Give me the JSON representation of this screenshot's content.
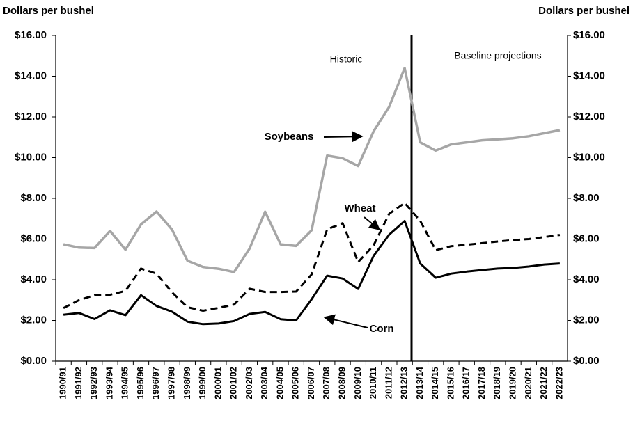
{
  "chart_data": {
    "type": "line",
    "ylabel": "Dollars per bushel",
    "y2label": "Dollars per bushel",
    "categories": [
      "1990/91",
      "1991/92",
      "1992/93",
      "1993/94",
      "1994/95",
      "1995/96",
      "1996/97",
      "1997/98",
      "1998/99",
      "1999/00",
      "2000/01",
      "2001/02",
      "2002/03",
      "2003/04",
      "2004/05",
      "2005/06",
      "2006/07",
      "2007/08",
      "2008/09",
      "2009/10",
      "2010/11",
      "2011/12",
      "2012/13",
      "2013/14",
      "2014/15",
      "2015/16",
      "2016/17",
      "2017/18",
      "2018/19",
      "2019/20",
      "2020/21",
      "2021/22",
      "2022/23"
    ],
    "series": [
      {
        "name": "Soybeans",
        "color": "#a6a6a6",
        "dashed": false,
        "values": [
          5.74,
          5.58,
          5.56,
          6.4,
          5.48,
          6.72,
          7.35,
          6.47,
          4.93,
          4.63,
          4.54,
          4.38,
          5.53,
          7.34,
          5.74,
          5.66,
          6.43,
          10.1,
          9.97,
          9.59,
          11.3,
          12.5,
          14.4,
          10.75,
          10.35,
          10.65,
          10.75,
          10.85,
          10.9,
          10.95,
          11.05,
          11.2,
          11.35
        ]
      },
      {
        "name": "Wheat",
        "color": "#000000",
        "dashed": true,
        "values": [
          2.61,
          3.0,
          3.24,
          3.26,
          3.45,
          4.55,
          4.3,
          3.38,
          2.65,
          2.48,
          2.62,
          2.78,
          3.56,
          3.4,
          3.4,
          3.42,
          4.26,
          6.48,
          6.78,
          4.87,
          5.7,
          7.24,
          7.77,
          6.9,
          5.45,
          5.65,
          5.72,
          5.8,
          5.88,
          5.95,
          6.0,
          6.1,
          6.2
        ]
      },
      {
        "name": "Corn",
        "color": "#000000",
        "dashed": false,
        "values": [
          2.28,
          2.37,
          2.07,
          2.5,
          2.26,
          3.24,
          2.71,
          2.43,
          1.94,
          1.82,
          1.85,
          1.97,
          2.32,
          2.42,
          2.06,
          2.0,
          3.04,
          4.2,
          4.06,
          3.55,
          5.18,
          6.22,
          6.89,
          4.8,
          4.1,
          4.3,
          4.4,
          4.48,
          4.55,
          4.58,
          4.65,
          4.75,
          4.8
        ]
      }
    ],
    "ylim": [
      0,
      16
    ],
    "yticks": [
      {
        "value": 0,
        "label": "$0.00"
      },
      {
        "value": 2,
        "label": "$2.00"
      },
      {
        "value": 4,
        "label": "$4.00"
      },
      {
        "value": 6,
        "label": "$6.00"
      },
      {
        "value": 8,
        "label": "$8.00"
      },
      {
        "value": 10,
        "label": "$10.00"
      },
      {
        "value": 12,
        "label": "$12.00"
      },
      {
        "value": 14,
        "label": "$14.00"
      },
      {
        "value": 16,
        "label": "$16.00"
      }
    ],
    "y2lim": [
      0,
      16
    ],
    "y2ticks": [
      {
        "value": 0,
        "label": "$0.00"
      },
      {
        "value": 2,
        "label": "$2.00"
      },
      {
        "value": 4,
        "label": "$4.00"
      },
      {
        "value": 6,
        "label": "$6.00"
      },
      {
        "value": 8,
        "label": "$8.00"
      },
      {
        "value": 10,
        "label": "$10.00"
      },
      {
        "value": 12,
        "label": "$12.00"
      },
      {
        "value": 14,
        "label": "$14.00"
      },
      {
        "value": 16,
        "label": "$16.00"
      }
    ],
    "grid": false,
    "annotations": [
      "Historic",
      "Baseline projections"
    ]
  }
}
